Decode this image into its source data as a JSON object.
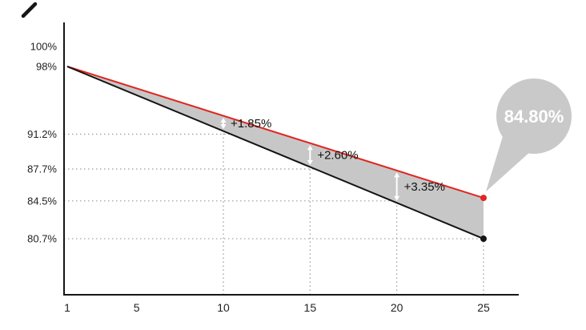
{
  "chart_data": {
    "type": "line",
    "title": "",
    "x_axis": {
      "ticks": [
        1,
        5,
        10,
        15,
        20,
        25
      ],
      "range": [
        1,
        25
      ]
    },
    "y_axis": {
      "ticks": [
        {
          "value": 100,
          "label": "100%"
        },
        {
          "value": 98,
          "label": "98%"
        },
        {
          "value": 91.2,
          "label": "91.2%"
        },
        {
          "value": 87.7,
          "label": "87.7%"
        },
        {
          "value": 84.5,
          "label": "84.5%"
        },
        {
          "value": 80.7,
          "label": "80.7%"
        }
      ]
    },
    "series": [
      {
        "name": "upper-line",
        "color": "#e0261f",
        "start": {
          "x": 1,
          "y": 98
        },
        "end": {
          "x": 25,
          "y": 84.8
        }
      },
      {
        "name": "lower-line",
        "color": "#141414",
        "start": {
          "x": 1,
          "y": 98
        },
        "end": {
          "x": 25,
          "y": 80.7
        }
      }
    ],
    "fill_between_color": "#c7c7c7",
    "grid_color": "#9a9a9a",
    "axis_color": "#161616",
    "grid_vertical_x": [
      10,
      15,
      20,
      25
    ],
    "grid_horizontal_y": [
      91.2,
      87.7,
      84.5,
      80.7
    ],
    "annotations": [
      {
        "x": 10,
        "label": "+1.85%"
      },
      {
        "x": 15,
        "label": "+2.60%"
      },
      {
        "x": 20,
        "label": "+3.35%"
      }
    ],
    "arrow_color": "#ffffff",
    "callout": {
      "label": "84.80%",
      "bg_color": "#c9c9c9",
      "text_color": "#ffffff"
    }
  }
}
